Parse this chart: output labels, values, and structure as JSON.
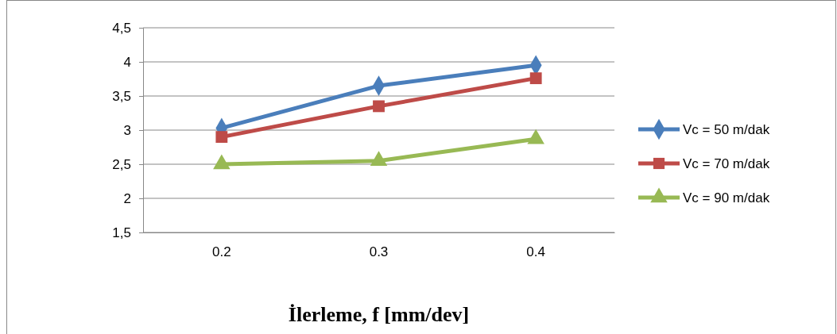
{
  "chart_data": {
    "type": "line",
    "xlabel": "İlerleme, f [mm/dev]",
    "categories": [
      "0.2",
      "0.3",
      "0.4"
    ],
    "ylim": [
      1.5,
      4.5
    ],
    "yticks": [
      {
        "value": 1.5,
        "label": "1,5"
      },
      {
        "value": 2,
        "label": "2"
      },
      {
        "value": 2.5,
        "label": "2,5"
      },
      {
        "value": 3,
        "label": "3"
      },
      {
        "value": 3.5,
        "label": "3,5"
      },
      {
        "value": 4,
        "label": "4"
      },
      {
        "value": 4.5,
        "label": "4,5"
      }
    ],
    "grid": "y",
    "legend": "right",
    "series": [
      {
        "name": "Vc = 50 m/dak",
        "color": "#4a7ebb",
        "marker": "diamond",
        "values": [
          3.03,
          3.65,
          3.95
        ]
      },
      {
        "name": "Vc = 70 m/dak",
        "color": "#be4b48",
        "marker": "square",
        "values": [
          2.9,
          3.35,
          3.76
        ]
      },
      {
        "name": "Vc = 90 m/dak",
        "color": "#98b954",
        "marker": "triangle",
        "values": [
          2.5,
          2.55,
          2.87
        ]
      }
    ]
  }
}
